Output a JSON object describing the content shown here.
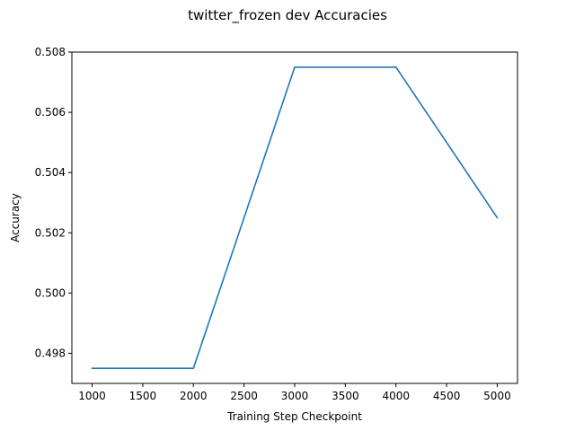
{
  "chart_data": {
    "type": "line",
    "title": "twitter_frozen dev Accuracies",
    "xlabel": "Training Step Checkpoint",
    "ylabel": "Accuracy",
    "x": [
      1000,
      2000,
      3000,
      4000,
      5000
    ],
    "series": [
      {
        "color": "#1f77b4",
        "values": [
          0.4975,
          0.4975,
          0.5075,
          0.5075,
          0.5025
        ]
      }
    ],
    "xlim": [
      800,
      5200
    ],
    "ylim": [
      0.497,
      0.508
    ],
    "xticks": [
      1000,
      1500,
      2000,
      2500,
      3000,
      3500,
      4000,
      4500,
      5000
    ],
    "yticks": [
      0.498,
      0.5,
      0.502,
      0.504,
      0.506,
      0.508
    ],
    "ytick_labels": [
      "0.498",
      "0.500",
      "0.502",
      "0.504",
      "0.506",
      "0.508"
    ],
    "grid": false,
    "legend": "none"
  }
}
